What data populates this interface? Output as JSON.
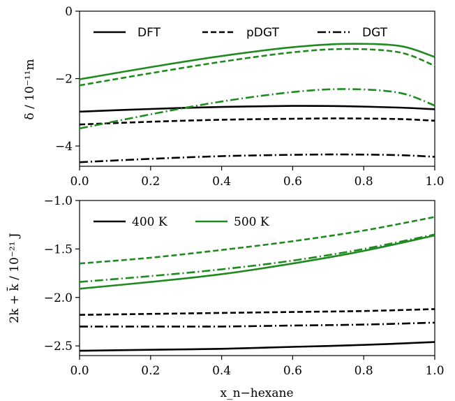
{
  "colors": {
    "black": "#000000",
    "green": "#1f8a1f"
  },
  "chart_data": [
    {
      "type": "line",
      "ylabel": "δ  /  10⁻¹¹m",
      "xlim": [
        0.0,
        1.0
      ],
      "ylim": [
        -4.6,
        0.0
      ],
      "xticks": [
        "0.0",
        "0.2",
        "0.4",
        "0.6",
        "0.8",
        "1.0"
      ],
      "yticks": [
        "0",
        "−2",
        "−4"
      ],
      "ytick_values": [
        0,
        -2,
        -4
      ],
      "legend": {
        "placement": "top",
        "entries": [
          {
            "label": "DFT",
            "style": "solid"
          },
          {
            "label": "pDGT",
            "style": "dashed"
          },
          {
            "label": "DGT",
            "style": "dashdot"
          }
        ]
      },
      "x": [
        0.0,
        0.2,
        0.4,
        0.6,
        0.75,
        0.9,
        1.0
      ],
      "series": [
        {
          "temperature": "400 K",
          "method": "DFT",
          "color": "black",
          "style": "solid",
          "values": [
            -2.98,
            -2.9,
            -2.84,
            -2.81,
            -2.82,
            -2.86,
            -2.91
          ]
        },
        {
          "temperature": "400 K",
          "method": "pDGT",
          "color": "black",
          "style": "dashed",
          "values": [
            -3.36,
            -3.28,
            -3.22,
            -3.19,
            -3.18,
            -3.2,
            -3.25
          ]
        },
        {
          "temperature": "400 K",
          "method": "DGT",
          "color": "black",
          "style": "dashdot",
          "values": [
            -4.48,
            -4.38,
            -4.3,
            -4.26,
            -4.25,
            -4.27,
            -4.32
          ]
        },
        {
          "temperature": "500 K",
          "method": "DFT",
          "color": "green",
          "style": "solid",
          "values": [
            -2.02,
            -1.66,
            -1.33,
            -1.07,
            -0.97,
            -1.03,
            -1.36
          ]
        },
        {
          "temperature": "500 K",
          "method": "pDGT",
          "color": "green",
          "style": "dashed",
          "values": [
            -2.2,
            -1.84,
            -1.5,
            -1.22,
            -1.12,
            -1.22,
            -1.62
          ]
        },
        {
          "temperature": "500 K",
          "method": "DGT",
          "color": "green",
          "style": "dashdot",
          "values": [
            -3.48,
            -3.06,
            -2.68,
            -2.4,
            -2.31,
            -2.42,
            -2.8
          ]
        }
      ]
    },
    {
      "type": "line",
      "xlabel": "x_n−hexane",
      "ylabel": "2k + k̄  /  10⁻²¹ J",
      "xlim": [
        0.0,
        1.0
      ],
      "ylim": [
        -2.6,
        -1.0
      ],
      "xticks": [
        "0.0",
        "0.2",
        "0.4",
        "0.6",
        "0.8",
        "1.0"
      ],
      "yticks": [
        "−1.0",
        "−1.5",
        "−2.0",
        "−2.5"
      ],
      "ytick_values": [
        -1.0,
        -1.5,
        -2.0,
        -2.5
      ],
      "legend": {
        "placement": "top-left",
        "entries": [
          {
            "label": "400 K",
            "color": "black"
          },
          {
            "label": "500 K",
            "color": "green"
          }
        ]
      },
      "x": [
        0.0,
        0.2,
        0.4,
        0.6,
        0.8,
        1.0
      ],
      "series": [
        {
          "temperature": "400 K",
          "method": "DFT",
          "color": "black",
          "style": "solid",
          "values": [
            -2.55,
            -2.54,
            -2.53,
            -2.51,
            -2.49,
            -2.46
          ]
        },
        {
          "temperature": "400 K",
          "method": "pDGT",
          "color": "black",
          "style": "dashed",
          "values": [
            -2.18,
            -2.17,
            -2.16,
            -2.15,
            -2.14,
            -2.12
          ]
        },
        {
          "temperature": "400 K",
          "method": "DGT",
          "color": "black",
          "style": "dashdot",
          "values": [
            -2.3,
            -2.3,
            -2.3,
            -2.29,
            -2.28,
            -2.26
          ]
        },
        {
          "temperature": "500 K",
          "method": "DFT",
          "color": "green",
          "style": "solid",
          "values": [
            -1.91,
            -1.84,
            -1.76,
            -1.65,
            -1.52,
            -1.36
          ]
        },
        {
          "temperature": "500 K",
          "method": "pDGT",
          "color": "green",
          "style": "dashed",
          "values": [
            -1.65,
            -1.59,
            -1.51,
            -1.42,
            -1.31,
            -1.17
          ]
        },
        {
          "temperature": "500 K",
          "method": "DGT",
          "color": "green",
          "style": "dashdot",
          "values": [
            -1.84,
            -1.78,
            -1.71,
            -1.62,
            -1.5,
            -1.35
          ]
        }
      ]
    }
  ]
}
